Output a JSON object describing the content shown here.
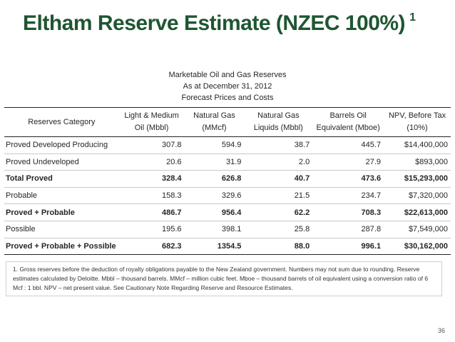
{
  "title": "Eltham Reserve Estimate (NZEC 100%)",
  "title_superscript": "1",
  "caption": {
    "line1": "Marketable Oil and Gas Reserves",
    "line2": "As at December 31, 2012",
    "line3": "Forecast Prices and Costs"
  },
  "table": {
    "headers": [
      {
        "line1": "Reserves Category",
        "line2": ""
      },
      {
        "line1": "Light & Medium",
        "line2": "Oil (Mbbl)"
      },
      {
        "line1": "Natural Gas",
        "line2": "(MMcf)"
      },
      {
        "line1": "Natural Gas",
        "line2": "Liquids (Mbbl)"
      },
      {
        "line1": "Barrels Oil",
        "line2": "Equivalent (Mboe)"
      },
      {
        "line1": "NPV, Before Tax",
        "line2": "(10%)"
      }
    ],
    "rows": [
      {
        "category": "Proved Developed Producing",
        "oil": "307.8",
        "gas": "594.9",
        "ngl": "38.7",
        "boe": "445.7",
        "npv": "$14,400,000",
        "bold": false
      },
      {
        "category": "Proved Undeveloped",
        "oil": "20.6",
        "gas": "31.9",
        "ngl": "2.0",
        "boe": "27.9",
        "npv": "$893,000",
        "bold": false
      },
      {
        "category": "Total Proved",
        "oil": "328.4",
        "gas": "626.8",
        "ngl": "40.7",
        "boe": "473.6",
        "npv": "$15,293,000",
        "bold": true
      },
      {
        "category": "Probable",
        "oil": "158.3",
        "gas": "329.6",
        "ngl": "21.5",
        "boe": "234.7",
        "npv": "$7,320,000",
        "bold": false
      },
      {
        "category": "Proved + Probable",
        "oil": "486.7",
        "gas": "956.4",
        "ngl": "62.2",
        "boe": "708.3",
        "npv": "$22,613,000",
        "bold": true
      },
      {
        "category": "Possible",
        "oil": "195.6",
        "gas": "398.1",
        "ngl": "25.8",
        "boe": "287.8",
        "npv": "$7,549,000",
        "bold": false
      },
      {
        "category": "Proved + Probable + Possible",
        "oil": "682.3",
        "gas": "1354.5",
        "ngl": "88.0",
        "boe": "996.1",
        "npv": "$30,162,000",
        "bold": true
      }
    ]
  },
  "footnote": "1. Gross reserves before the deduction of royalty obligations payable to the New Zealand government. Numbers may not sum due to rounding. Reserve estimates calculated by Deloitte. Mbbl – thousand barrels. MMcf – million cubic feet. Mboe – thousand barrels of oil equivalent using a conversion ratio of 6 Mcf : 1 bbl. NPV – net present value. See Cautionary Note Regarding Reserve and Resource Estimates.",
  "page_number": "36",
  "colors": {
    "title": "#1e5631",
    "text": "#262626",
    "rule": "#222222"
  }
}
